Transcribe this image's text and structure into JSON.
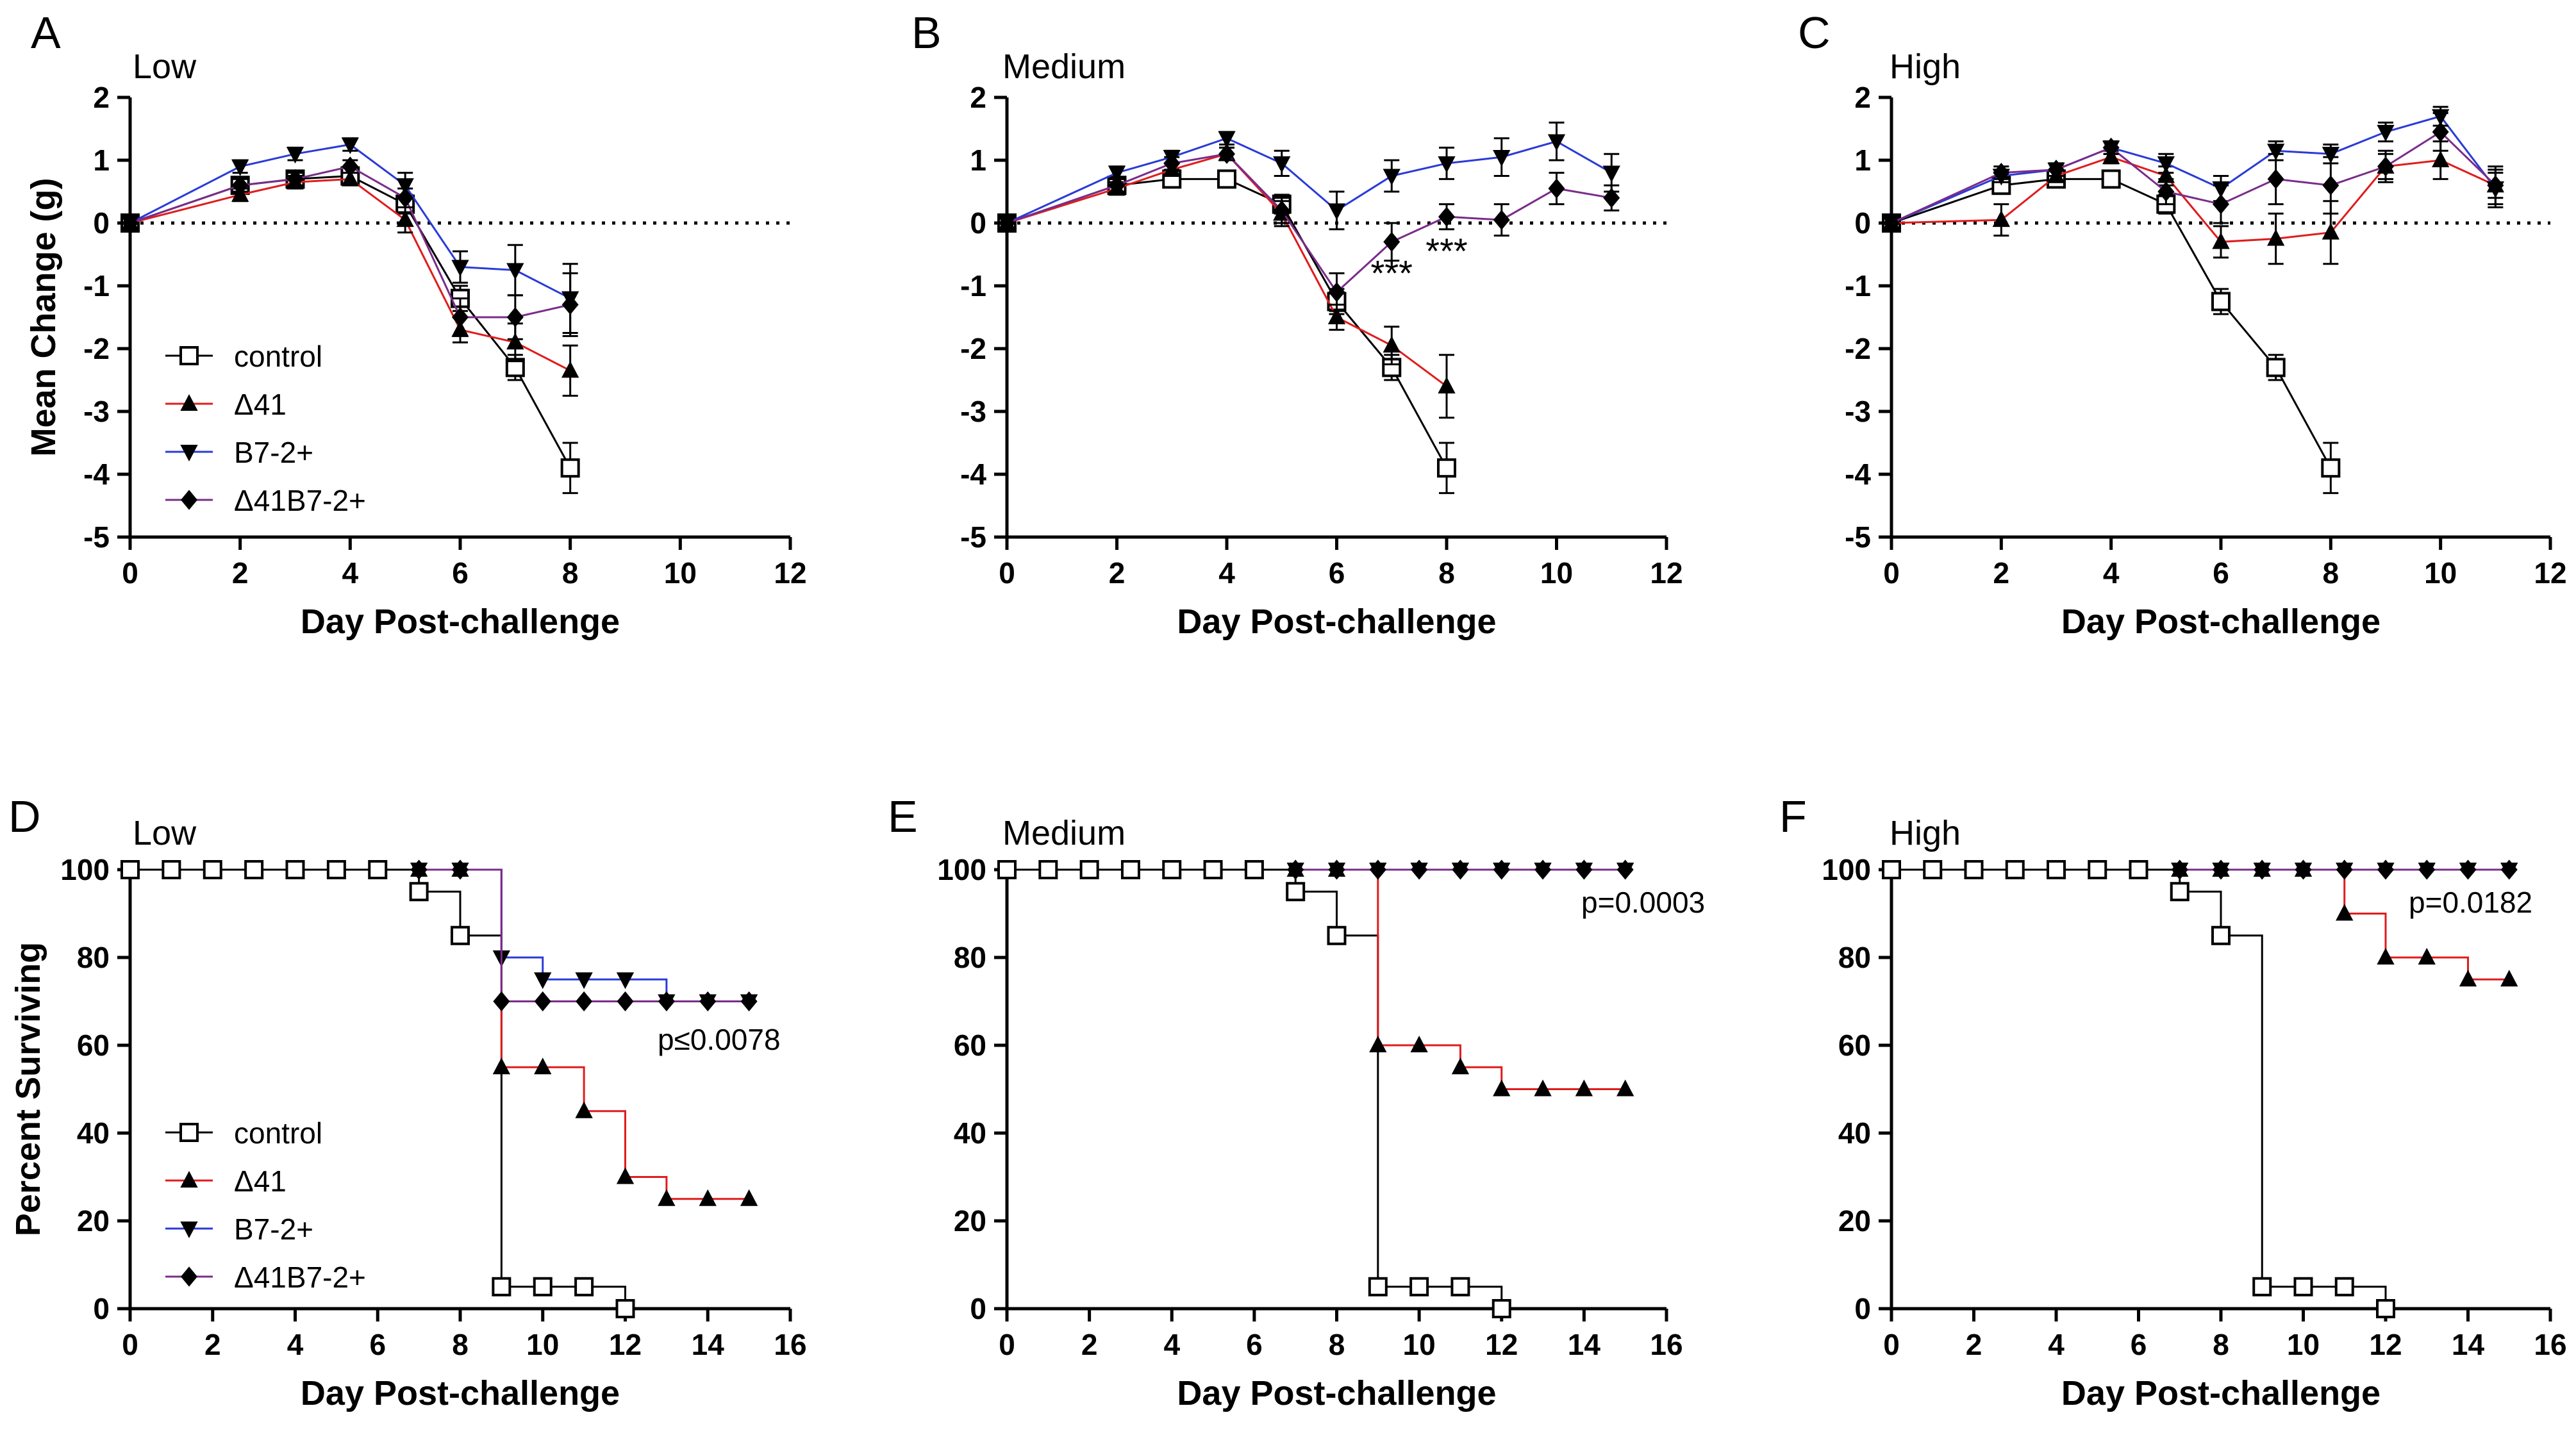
{
  "series_styles": {
    "control": {
      "color": "#000000",
      "marker": "square-open"
    },
    "d41": {
      "color": "#e01c1c",
      "marker": "triangle-up"
    },
    "b72": {
      "color": "#2a3bd6",
      "marker": "triangle-down"
    },
    "d41b72": {
      "color": "#7a2c8a",
      "marker": "diamond"
    }
  },
  "line_color": "#000000",
  "chart_data": [
    {
      "type": "line",
      "panel": "A",
      "title": "Low",
      "xlabel": "Day Post-challenge",
      "ylabel": "Mean Change (g)",
      "xlim": [
        0,
        12
      ],
      "ylim": [
        -5,
        2
      ],
      "xticks": [
        "0",
        "2",
        "4",
        "6",
        "8",
        "10",
        "12"
      ],
      "yticks": [
        "-5",
        "-4",
        "-3",
        "-2",
        "-1",
        "0",
        "1",
        "2"
      ],
      "zero_line": "dotted",
      "legend": [
        "control",
        "Δ41",
        "B7-2+",
        "Δ41B7-2+"
      ],
      "series": [
        {
          "key": "control",
          "name": "control",
          "x": [
            0,
            2,
            3,
            4,
            5,
            6,
            7,
            8
          ],
          "y": [
            0,
            0.6,
            0.7,
            0.75,
            0.3,
            -1.2,
            -2.3,
            -3.9
          ],
          "err": [
            0,
            0.1,
            0.1,
            0.1,
            0.15,
            0.2,
            0.2,
            0.4
          ]
        },
        {
          "key": "d41",
          "name": "Δ41",
          "x": [
            0,
            2,
            3,
            4,
            5,
            6,
            7,
            8
          ],
          "y": [
            0,
            0.45,
            0.65,
            0.7,
            0.05,
            -1.7,
            -1.9,
            -2.35
          ],
          "err": [
            0,
            0.1,
            0.1,
            0.1,
            0.2,
            0.2,
            0.3,
            0.4
          ]
        },
        {
          "key": "b72",
          "name": "B7-2+",
          "x": [
            0,
            2,
            3,
            4,
            5,
            6,
            7,
            8
          ],
          "y": [
            0,
            0.9,
            1.1,
            1.25,
            0.6,
            -0.7,
            -0.75,
            -1.2
          ],
          "err": [
            0,
            0.1,
            0.1,
            0.1,
            0.2,
            0.25,
            0.4,
            0.55
          ]
        },
        {
          "key": "d41b72",
          "name": "Δ41B7-2+",
          "x": [
            0,
            2,
            3,
            4,
            5,
            6,
            7,
            8
          ],
          "y": [
            0,
            0.6,
            0.7,
            0.9,
            0.4,
            -1.5,
            -1.5,
            -1.3
          ],
          "err": [
            0,
            0.1,
            0.1,
            0.1,
            0.15,
            0.3,
            0.35,
            0.5
          ]
        }
      ],
      "annotations": []
    },
    {
      "type": "line",
      "panel": "B",
      "title": "Medium",
      "xlabel": "Day Post-challenge",
      "ylabel": "",
      "xlim": [
        0,
        12
      ],
      "ylim": [
        -5,
        2
      ],
      "xticks": [
        "0",
        "2",
        "4",
        "6",
        "8",
        "10",
        "12"
      ],
      "yticks": [
        "-5",
        "-4",
        "-3",
        "-2",
        "-1",
        "0",
        "1",
        "2"
      ],
      "zero_line": "dotted",
      "legend": [],
      "series": [
        {
          "key": "control",
          "name": "control",
          "x": [
            0,
            2,
            3,
            4,
            5,
            6,
            7,
            8
          ],
          "y": [
            0,
            0.6,
            0.7,
            0.7,
            0.3,
            -1.25,
            -2.3,
            -3.9
          ],
          "err": [
            0,
            0.1,
            0.1,
            0.1,
            0.15,
            0.2,
            0.2,
            0.4
          ]
        },
        {
          "key": "d41",
          "name": "Δ41",
          "x": [
            0,
            2,
            3,
            4,
            5,
            6,
            7,
            8
          ],
          "y": [
            0,
            0.55,
            0.85,
            1.1,
            0.15,
            -1.5,
            -1.95,
            -2.6
          ],
          "err": [
            0,
            0.1,
            0.1,
            0.1,
            0.2,
            0.2,
            0.3,
            0.5
          ]
        },
        {
          "key": "b72",
          "name": "B7-2+",
          "x": [
            0,
            2,
            3,
            4,
            5,
            6,
            7,
            8,
            9,
            10,
            11
          ],
          "y": [
            0,
            0.8,
            1.05,
            1.35,
            0.95,
            0.2,
            0.75,
            0.95,
            1.05,
            1.3,
            0.8
          ],
          "err": [
            0,
            0.1,
            0.1,
            0.1,
            0.2,
            0.3,
            0.25,
            0.25,
            0.3,
            0.3,
            0.3
          ]
        },
        {
          "key": "d41b72",
          "name": "Δ41B7-2+",
          "x": [
            0,
            2,
            3,
            4,
            5,
            6,
            7,
            8,
            9,
            10,
            11
          ],
          "y": [
            0,
            0.6,
            0.95,
            1.1,
            0.2,
            -1.1,
            -0.3,
            0.1,
            0.05,
            0.55,
            0.4
          ],
          "err": [
            0,
            0.1,
            0.1,
            0.1,
            0.2,
            0.3,
            0.3,
            0.2,
            0.25,
            0.25,
            0.2
          ]
        }
      ],
      "annotations": [
        {
          "x": 7,
          "y": -0.75,
          "text": "***"
        },
        {
          "x": 8,
          "y": -0.4,
          "text": "***"
        }
      ]
    },
    {
      "type": "line",
      "panel": "C",
      "title": "High",
      "xlabel": "Day Post-challenge",
      "ylabel": "",
      "xlim": [
        0,
        12
      ],
      "ylim": [
        -5,
        2
      ],
      "xticks": [
        "0",
        "2",
        "4",
        "6",
        "8",
        "10",
        "12"
      ],
      "yticks": [
        "-5",
        "-4",
        "-3",
        "-2",
        "-1",
        "0",
        "1",
        "2"
      ],
      "zero_line": "dotted",
      "legend": [],
      "series": [
        {
          "key": "control",
          "name": "control",
          "x": [
            0,
            2,
            3,
            4,
            5,
            6,
            7,
            8
          ],
          "y": [
            0,
            0.6,
            0.7,
            0.7,
            0.3,
            -1.25,
            -2.3,
            -3.9
          ],
          "err": [
            0,
            0.1,
            0.1,
            0.1,
            0.15,
            0.2,
            0.2,
            0.4
          ]
        },
        {
          "key": "d41",
          "name": "Δ41",
          "x": [
            0,
            2,
            3,
            4,
            5,
            6,
            7,
            8,
            9,
            10,
            11
          ],
          "y": [
            0,
            0.05,
            0.75,
            1.05,
            0.75,
            -0.3,
            -0.25,
            -0.15,
            0.9,
            1.0,
            0.6
          ],
          "err": [
            0,
            0.25,
            0.1,
            0.1,
            0.15,
            0.25,
            0.4,
            0.5,
            0.2,
            0.3,
            0.3
          ]
        },
        {
          "key": "b72",
          "name": "B7-2+",
          "x": [
            0,
            2,
            3,
            4,
            5,
            6,
            7,
            8,
            9,
            10,
            11
          ],
          "y": [
            0,
            0.75,
            0.85,
            1.2,
            0.95,
            0.55,
            1.15,
            1.1,
            1.45,
            1.7,
            0.55
          ],
          "err": [
            0,
            0.1,
            0.1,
            0.1,
            0.15,
            0.2,
            0.15,
            0.15,
            0.15,
            0.15,
            0.3
          ]
        },
        {
          "key": "d41b72",
          "name": "Δ41B7-2+",
          "x": [
            0,
            2,
            3,
            4,
            5,
            6,
            7,
            8,
            9,
            10,
            11
          ],
          "y": [
            0,
            0.8,
            0.85,
            1.2,
            0.5,
            0.3,
            0.7,
            0.6,
            0.9,
            1.45,
            0.6
          ],
          "err": [
            0,
            0.1,
            0.1,
            0.1,
            0.2,
            0.3,
            0.4,
            0.45,
            0.25,
            0.3,
            0.2
          ]
        }
      ],
      "annotations": []
    },
    {
      "type": "step",
      "panel": "D",
      "title": "Low",
      "xlabel": "Day Post-challenge",
      "ylabel": "Percent Surviving",
      "xlim": [
        0,
        16
      ],
      "ylim": [
        0,
        100
      ],
      "xticks": [
        "0",
        "2",
        "4",
        "6",
        "8",
        "10",
        "12",
        "14",
        "16"
      ],
      "yticks": [
        "0",
        "20",
        "40",
        "60",
        "80",
        "100"
      ],
      "legend": [
        "control",
        "Δ41",
        "B7-2+",
        "Δ41B7-2+"
      ],
      "pvalue": "p≤0.0078",
      "series": [
        {
          "key": "control",
          "name": "control",
          "x": [
            0,
            1,
            2,
            3,
            4,
            5,
            6,
            7,
            8,
            9,
            10,
            11,
            12
          ],
          "y": [
            100,
            100,
            100,
            100,
            100,
            100,
            100,
            95,
            85,
            5,
            5,
            5,
            0
          ]
        },
        {
          "key": "d41",
          "name": "Δ41",
          "x": [
            7,
            8,
            9,
            10,
            11,
            12,
            13,
            14,
            15
          ],
          "y": [
            100,
            100,
            55,
            55,
            45,
            30,
            25,
            25,
            25
          ]
        },
        {
          "key": "b72",
          "name": "B7-2+",
          "x": [
            7,
            8,
            9,
            10,
            11,
            12,
            13,
            14,
            15
          ],
          "y": [
            100,
            100,
            80,
            75,
            75,
            75,
            70,
            70,
            70
          ]
        },
        {
          "key": "d41b72",
          "name": "Δ41B7-2+",
          "x": [
            7,
            8,
            9,
            10,
            11,
            12,
            13,
            14,
            15
          ],
          "y": [
            100,
            100,
            70,
            70,
            70,
            70,
            70,
            70,
            70
          ]
        }
      ]
    },
    {
      "type": "step",
      "panel": "E",
      "title": "Medium",
      "xlabel": "Day Post-challenge",
      "ylabel": "",
      "xlim": [
        0,
        16
      ],
      "ylim": [
        0,
        100
      ],
      "xticks": [
        "0",
        "2",
        "4",
        "6",
        "8",
        "10",
        "12",
        "14",
        "16"
      ],
      "yticks": [
        "0",
        "20",
        "40",
        "60",
        "80",
        "100"
      ],
      "legend": [],
      "pvalue": "p=0.0003",
      "series": [
        {
          "key": "control",
          "name": "control",
          "x": [
            0,
            1,
            2,
            3,
            4,
            5,
            6,
            7,
            8,
            9,
            10,
            11,
            12
          ],
          "y": [
            100,
            100,
            100,
            100,
            100,
            100,
            100,
            95,
            85,
            5,
            5,
            5,
            0
          ]
        },
        {
          "key": "d41",
          "name": "Δ41",
          "x": [
            7,
            8,
            9,
            10,
            11,
            12,
            13,
            14,
            15
          ],
          "y": [
            100,
            100,
            60,
            60,
            55,
            50,
            50,
            50,
            50
          ]
        },
        {
          "key": "b72",
          "name": "B7-2+",
          "x": [
            7,
            8,
            9,
            10,
            11,
            12,
            13,
            14,
            15
          ],
          "y": [
            100,
            100,
            100,
            100,
            100,
            100,
            100,
            100,
            100
          ]
        },
        {
          "key": "d41b72",
          "name": "Δ41B7-2+",
          "x": [
            7,
            8,
            9,
            10,
            11,
            12,
            13,
            14,
            15
          ],
          "y": [
            100,
            100,
            100,
            100,
            100,
            100,
            100,
            100,
            100
          ]
        }
      ]
    },
    {
      "type": "step",
      "panel": "F",
      "title": "High",
      "xlabel": "Day Post-challenge",
      "ylabel": "",
      "xlim": [
        0,
        16
      ],
      "ylim": [
        0,
        100
      ],
      "xticks": [
        "0",
        "2",
        "4",
        "6",
        "8",
        "10",
        "12",
        "14",
        "16"
      ],
      "yticks": [
        "0",
        "20",
        "40",
        "60",
        "80",
        "100"
      ],
      "legend": [],
      "pvalue": "p=0.0182",
      "series": [
        {
          "key": "control",
          "name": "control",
          "x": [
            0,
            1,
            2,
            3,
            4,
            5,
            6,
            7,
            8,
            9,
            10,
            11,
            12
          ],
          "y": [
            100,
            100,
            100,
            100,
            100,
            100,
            100,
            95,
            85,
            5,
            5,
            5,
            0
          ]
        },
        {
          "key": "d41",
          "name": "Δ41",
          "x": [
            7,
            8,
            9,
            10,
            11,
            12,
            13,
            14,
            15
          ],
          "y": [
            100,
            100,
            100,
            100,
            90,
            80,
            80,
            75,
            75
          ]
        },
        {
          "key": "b72",
          "name": "B7-2+",
          "x": [
            7,
            8,
            9,
            10,
            11,
            12,
            13,
            14,
            15
          ],
          "y": [
            100,
            100,
            100,
            100,
            100,
            100,
            100,
            100,
            100
          ]
        },
        {
          "key": "d41b72",
          "name": "Δ41B7-2+",
          "x": [
            7,
            8,
            9,
            10,
            11,
            12,
            13,
            14,
            15
          ],
          "y": [
            100,
            100,
            100,
            100,
            100,
            100,
            100,
            100,
            100
          ]
        }
      ]
    }
  ]
}
